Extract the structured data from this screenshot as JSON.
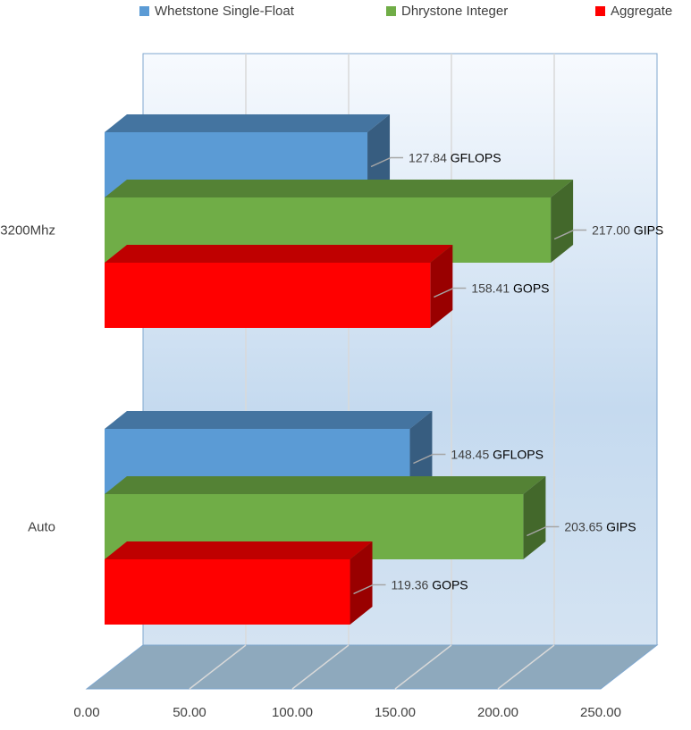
{
  "chart_data": {
    "type": "bar",
    "orientation": "horizontal",
    "style": "3d-clustered",
    "categories": [
      "3200Mhz",
      "Auto"
    ],
    "series": [
      {
        "name": "Whetstone Single-Float",
        "color": "#5b9bd5",
        "values": [
          127.84,
          148.45
        ],
        "data_labels": [
          {
            "value": "127.84",
            "unit": "GFLOPS"
          },
          {
            "value": "148.45",
            "unit": "GFLOPS"
          }
        ]
      },
      {
        "name": "Dhrystone Integer",
        "color": "#70ad47",
        "values": [
          217.0,
          203.65
        ],
        "data_labels": [
          {
            "value": "217.00",
            "unit": "GIPS"
          },
          {
            "value": "203.65",
            "unit": "GIPS"
          }
        ]
      },
      {
        "name": "Aggregate",
        "color": "#ff0000",
        "values": [
          158.41,
          119.36
        ],
        "data_labels": [
          {
            "value": "158.41",
            "unit": "GOPS"
          },
          {
            "value": "119.36",
            "unit": "GOPS"
          }
        ]
      }
    ],
    "xlim": [
      0,
      250
    ],
    "x_ticks": [
      "0.00",
      "50.00",
      "100.00",
      "150.00",
      "200.00",
      "250.00"
    ],
    "x_tick_values": [
      0,
      50,
      100,
      150,
      200,
      250
    ],
    "legend_position": "top",
    "grid": true,
    "title": "",
    "xlabel": "",
    "ylabel": ""
  }
}
